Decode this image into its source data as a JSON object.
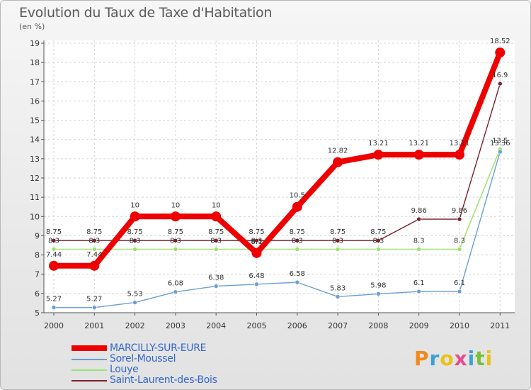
{
  "title": "Evolution du Taux de Taxe d'Habitation",
  "subtitle": "(en %)",
  "chart_data": {
    "type": "line",
    "title": "Evolution du Taux de Taxe d'Habitation",
    "ylabel": "(en %)",
    "xlabel": "",
    "categories": [
      "2000",
      "2001",
      "2002",
      "2003",
      "2004",
      "2005",
      "2006",
      "2007",
      "2008",
      "2009",
      "2010",
      "2011"
    ],
    "ylim": [
      5,
      19
    ],
    "yticks": [
      5,
      6,
      7,
      8,
      9,
      10,
      11,
      12,
      13,
      14,
      15,
      16,
      17,
      18,
      19
    ],
    "grid": true,
    "legend_position": "bottom-left",
    "series": [
      {
        "name": "Saint-Laurent-des-Bois",
        "color": "#7a1f2b",
        "values": [
          8.75,
          8.75,
          8.75,
          8.75,
          8.75,
          8.75,
          8.75,
          8.75,
          8.75,
          9.86,
          9.86,
          16.9
        ],
        "labels": [
          "8.75",
          "8.75",
          "8.75",
          "8.75",
          "8.75",
          "8.75",
          "8.75",
          "8.75",
          "8.75",
          "9.86",
          "9.86",
          "16.9"
        ]
      },
      {
        "name": "Louye",
        "color": "#99e26b",
        "values": [
          8.3,
          8.3,
          8.3,
          8.3,
          8.3,
          8.3,
          8.3,
          8.3,
          8.3,
          8.3,
          8.3,
          13.5
        ],
        "labels": [
          "8.3",
          "8.3",
          "8.3",
          "8.3",
          "8.3",
          "8.3",
          "8.3",
          "8.3",
          "8.3",
          "8.3",
          "8.3",
          "13.5"
        ]
      },
      {
        "name": "Sorel-Moussel",
        "color": "#6b9fd4",
        "values": [
          5.27,
          5.27,
          5.53,
          6.08,
          6.38,
          6.48,
          6.58,
          5.83,
          5.98,
          6.1,
          6.1,
          13.36
        ],
        "labels": [
          "5.27",
          "5.27",
          "5.53",
          "6.08",
          "6.38",
          "6.48",
          "6.58",
          "5.83",
          "5.98",
          "6.1",
          "6.1",
          "13.36"
        ]
      },
      {
        "name": "MARCILLY-SUR-EURE",
        "color": "#ee0000",
        "values": [
          7.44,
          7.44,
          10,
          10,
          10,
          8.1,
          10.5,
          12.82,
          13.21,
          13.21,
          13.21,
          18.52
        ],
        "labels": [
          "7.44",
          "7.44",
          "10",
          "10",
          "10",
          "8.1",
          "10.5",
          "12.82",
          "13.21",
          "13.21",
          "13.21",
          "18.52"
        ]
      }
    ]
  },
  "legend": [
    {
      "name": "MARCILLY-SUR-EURE",
      "color": "#ee0000"
    },
    {
      "name": "Sorel-Moussel",
      "color": "#6b9fd4"
    },
    {
      "name": "Louye",
      "color": "#99e26b"
    },
    {
      "name": "Saint-Laurent-des-Bois",
      "color": "#7a1f2b"
    }
  ],
  "logo": {
    "letters": [
      "P",
      "r",
      "o",
      "x",
      "i",
      "t",
      "i"
    ],
    "colors": [
      "#f08a1d",
      "#3aa0d8",
      "#e8c21a",
      "#e74c8c",
      "#3aa0d8",
      "#7bbf3a",
      "#e8c21a"
    ]
  }
}
